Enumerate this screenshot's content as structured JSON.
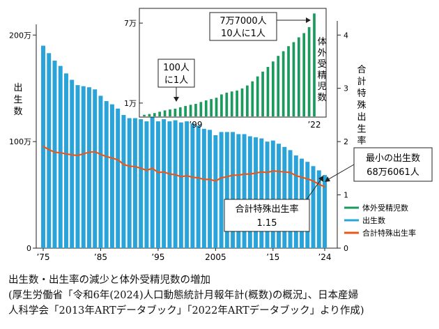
{
  "chart_data": [
    {
      "type": "bar+line",
      "x_tick_labels": [
        "’75",
        "’85",
        "’95",
        "2005",
        "’15",
        "’24"
      ],
      "left_axis": {
        "label": "出生数",
        "tick_labels": [
          "0",
          "100万",
          "200万"
        ],
        "ticks": [
          0,
          1000000,
          2000000
        ],
        "ylim": [
          0,
          2100000
        ]
      },
      "right_axis": {
        "label": "合計特殊出生率",
        "tick_labels": [
          "0",
          "1",
          "2",
          "3",
          "4"
        ],
        "ticks": [
          0,
          1,
          2,
          3,
          4
        ],
        "ylim": [
          0,
          4.2
        ]
      },
      "x": [
        1975,
        1976,
        1977,
        1978,
        1979,
        1980,
        1981,
        1982,
        1983,
        1984,
        1985,
        1986,
        1987,
        1988,
        1989,
        1990,
        1991,
        1992,
        1993,
        1994,
        1995,
        1996,
        1997,
        1998,
        1999,
        2000,
        2001,
        2002,
        2003,
        2004,
        2005,
        2006,
        2007,
        2008,
        2009,
        2010,
        2011,
        2012,
        2013,
        2014,
        2015,
        2016,
        2017,
        2018,
        2019,
        2020,
        2021,
        2022,
        2023,
        2024
      ],
      "series": [
        {
          "name": "出生数",
          "axis": "left",
          "color": "#2aa3d8",
          "values": [
            1900000,
            1830000,
            1760000,
            1710000,
            1640000,
            1580000,
            1530000,
            1520000,
            1510000,
            1490000,
            1430000,
            1380000,
            1350000,
            1310000,
            1250000,
            1220000,
            1220000,
            1210000,
            1190000,
            1240000,
            1190000,
            1210000,
            1190000,
            1200000,
            1180000,
            1190000,
            1170000,
            1150000,
            1120000,
            1110000,
            1060000,
            1090000,
            1090000,
            1090000,
            1070000,
            1070000,
            1050000,
            1040000,
            1030000,
            1000000,
            1010000,
            980000,
            950000,
            920000,
            870000,
            840000,
            810000,
            770000,
            730000,
            686061
          ]
        },
        {
          "name": "合計特殊出生率",
          "axis": "right",
          "color": "#e8581c",
          "values": [
            1.91,
            1.85,
            1.8,
            1.79,
            1.77,
            1.75,
            1.74,
            1.77,
            1.8,
            1.81,
            1.76,
            1.72,
            1.69,
            1.66,
            1.57,
            1.54,
            1.53,
            1.5,
            1.46,
            1.5,
            1.42,
            1.43,
            1.39,
            1.38,
            1.34,
            1.36,
            1.33,
            1.32,
            1.29,
            1.29,
            1.26,
            1.32,
            1.34,
            1.37,
            1.37,
            1.39,
            1.39,
            1.41,
            1.43,
            1.42,
            1.45,
            1.44,
            1.43,
            1.42,
            1.36,
            1.33,
            1.3,
            1.26,
            1.2,
            1.15
          ]
        }
      ],
      "legend": {
        "placement": "bottom-right",
        "items": [
          {
            "label": "体外受精児数",
            "color": "#1a9a5c"
          },
          {
            "label": "出生数",
            "color": "#2aa3d8"
          },
          {
            "label": "合計特殊出生率",
            "color": "#e8581c"
          }
        ]
      },
      "annotations": [
        {
          "line1": "最小の出生数",
          "line2": "68万6061人"
        },
        {
          "line1": "合計特殊出生率",
          "line2": "1.15"
        }
      ]
    },
    {
      "type": "bar",
      "label": "体外受精児数",
      "x_tick_labels": [
        "’99",
        "’22"
      ],
      "y_tick_labels": [
        "1万",
        "7万"
      ],
      "y_ticks": [
        10000,
        70000
      ],
      "x": [
        1989,
        1990,
        1991,
        1992,
        1993,
        1994,
        1995,
        1996,
        1997,
        1998,
        1999,
        2000,
        2001,
        2002,
        2003,
        2004,
        2005,
        2006,
        2007,
        2008,
        2009,
        2010,
        2011,
        2012,
        2013,
        2014,
        2015,
        2016,
        2017,
        2018,
        2019,
        2020,
        2021,
        2022
      ],
      "values": [
        1200,
        1800,
        2500,
        3500,
        4500,
        5200,
        5800,
        6800,
        7800,
        8700,
        9400,
        10800,
        12000,
        13000,
        14000,
        16500,
        17800,
        18700,
        19400,
        21000,
        23200,
        26300,
        30000,
        33600,
        37100,
        41200,
        45400,
        48900,
        52700,
        55700,
        59300,
        62500,
        67000,
        77206
      ],
      "color": "#1a9a5c",
      "annotations": [
        {
          "line1": "100人",
          "line2": "に1人"
        },
        {
          "line1": "7万7000人",
          "line2": "10人に1人"
        }
      ]
    }
  ],
  "caption": {
    "title": "出生数・出生率の減少と体外受精児数の増加",
    "line2": "(厚生労働省「令和6年(2024)人口動態統計月報年計(概数)の概況」、日本産婦",
    "line3": "人科学会「2013年ARTデータブック」「2022年ARTデータブック」より作成)"
  }
}
